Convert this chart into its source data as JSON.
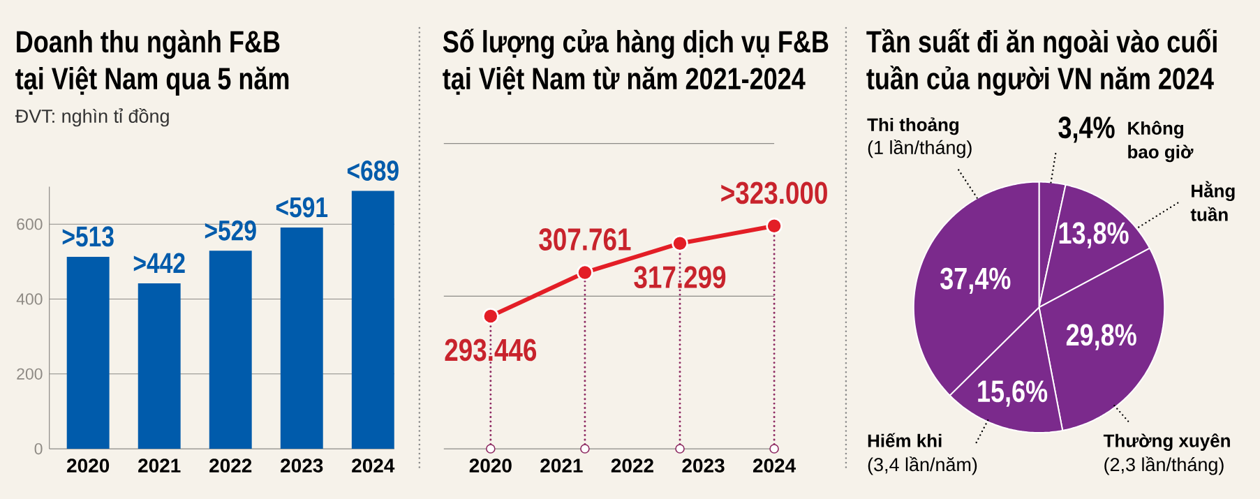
{
  "chart_data": [
    {
      "type": "bar",
      "title": "Doanh thu ngành F&B tại Việt Nam qua 5 năm",
      "subtitle": "ĐVT: nghìn tỉ đồng",
      "categories": [
        "2020",
        "2021",
        "2022",
        "2023",
        "2024"
      ],
      "values": [
        513,
        442,
        529,
        591,
        689
      ],
      "value_labels": [
        ">513",
        ">442",
        ">529",
        "<591",
        "<689"
      ],
      "color": "#005bab",
      "ylim": [
        0,
        700
      ],
      "yticks": [
        0,
        200,
        400,
        600
      ],
      "grid": "y"
    },
    {
      "type": "line",
      "title": "Số lượng cửa hàng dịch vụ F&B tại Việt Nam từ năm 2021-2024",
      "x": [
        2020,
        2021.33,
        2022.67,
        2024
      ],
      "values": [
        293446,
        307761,
        317299,
        323000
      ],
      "value_labels": [
        "293.446",
        "307.761",
        "317.299",
        ">323.000"
      ],
      "color": "#e31e26",
      "marker": "circle",
      "xlim": [
        2019.34,
        2024
      ],
      "xticks": [
        2020,
        2021,
        2022,
        2023,
        2024
      ],
      "ylim": [
        250000,
        350000
      ],
      "yticks": [
        {
          "value": 250000,
          "label": null
        },
        {
          "value": 300000,
          "label": null
        },
        {
          "value": 350000,
          "label": null
        }
      ],
      "tick_labels": "x",
      "grid": "y",
      "ref_lines": [
        {
          "axis": "x",
          "value": 2020,
          "color": "#8e2a62",
          "line_style": "dotted"
        },
        {
          "axis": "x",
          "value": 2021.33,
          "color": "#8e2a62",
          "line_style": "dotted"
        },
        {
          "axis": "x",
          "value": 2022.67,
          "color": "#8e2a62",
          "line_style": "dotted"
        },
        {
          "axis": "x",
          "value": 2024,
          "color": "#8e2a62",
          "line_style": "dotted"
        }
      ]
    },
    {
      "type": "pie",
      "title": "Tần suất đi ăn ngoài vào cuối tuần của người VN năm 2024",
      "categories": [
        "Không bao giờ",
        "Hằng tuần",
        "Thường xuyên",
        "Hiếm khi",
        "Thi thoảng"
      ],
      "values": [
        3.4,
        13.8,
        29.8,
        15.6,
        37.4
      ],
      "value_labels": [
        "3,4%",
        "13,8%",
        "29,8%",
        "15,6%",
        "37,4%"
      ],
      "colors": [
        "#7b2a8c",
        "#7b2a8c",
        "#7b2a8c",
        "#7b2a8c",
        "#7b2a8c"
      ],
      "annotations": [
        "(2,3 lần/tháng)",
        "(3,4 lần/năm)",
        "(1 lần/tháng)"
      ]
    }
  ]
}
